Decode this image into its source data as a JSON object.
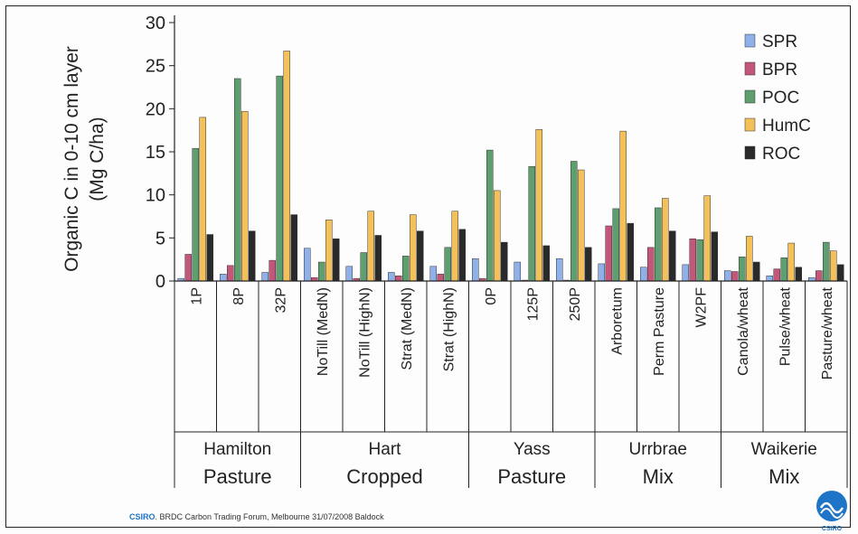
{
  "chart_data": {
    "type": "bar",
    "ylabel": [
      "Organic C in 0-10 cm layer",
      "(Mg C/ha)"
    ],
    "ylim": [
      0,
      30
    ],
    "yticks": [
      0,
      5,
      10,
      15,
      20,
      25,
      30
    ],
    "grid": false,
    "legend_position": "top-right",
    "categories": [
      "1P",
      "8P",
      "32P",
      "NoTill (MedN)",
      "NoTill (HighN)",
      "Strat (MedN)",
      "Strat (HighN)",
      "0P",
      "125P",
      "250P",
      "Arboretum",
      "Perm Pasture",
      "W2PF",
      "Canola/wheat",
      "Pulse/wheat",
      "Pasture/wheat"
    ],
    "groups": [
      {
        "site": "Hamilton",
        "type": "Pasture",
        "count": 3
      },
      {
        "site": "Hart",
        "type": "Cropped",
        "count": 4
      },
      {
        "site": "Yass",
        "type": "Pasture",
        "count": 3
      },
      {
        "site": "Urrbrae",
        "type": "Mix",
        "count": 3
      },
      {
        "site": "Waikerie",
        "type": "Mix",
        "count": 3
      }
    ],
    "series": [
      {
        "name": "SPR",
        "color": "#8fb0e8",
        "values": [
          0.3,
          0.8,
          1.0,
          3.8,
          1.7,
          1.0,
          1.7,
          2.6,
          2.2,
          2.6,
          2.0,
          1.6,
          1.9,
          1.2,
          0.6,
          0.4
        ]
      },
      {
        "name": "BPR",
        "color": "#c2577a",
        "values": [
          3.1,
          1.8,
          2.4,
          0.4,
          0.3,
          0.6,
          0.8,
          0.3,
          0.1,
          0.1,
          6.4,
          3.9,
          4.9,
          1.1,
          1.4,
          1.2
        ]
      },
      {
        "name": "POC",
        "color": "#5f9e6e",
        "values": [
          15.4,
          23.5,
          23.8,
          2.2,
          3.3,
          2.9,
          3.9,
          15.2,
          13.3,
          13.9,
          8.4,
          8.5,
          4.8,
          2.8,
          2.7,
          4.5
        ]
      },
      {
        "name": "HumC",
        "color": "#f3c05a",
        "values": [
          19.0,
          19.7,
          26.7,
          7.1,
          8.1,
          7.7,
          8.1,
          10.5,
          17.6,
          12.9,
          17.4,
          9.6,
          9.9,
          5.2,
          4.4,
          3.5
        ]
      },
      {
        "name": "ROC",
        "color": "#2a2a2a",
        "values": [
          5.4,
          5.8,
          7.7,
          4.9,
          5.3,
          5.8,
          6.0,
          4.5,
          4.1,
          3.9,
          6.7,
          5.8,
          5.7,
          2.2,
          1.6,
          1.9
        ]
      }
    ]
  },
  "footer": {
    "brand": "CSIRO",
    "text": ". BRDC Carbon Trading Forum, Melbourne 31/07/2008 Baldock"
  },
  "logo": {
    "text": "CSIRO",
    "icon": "csiro-logo-icon",
    "color": "#1e74c6"
  }
}
